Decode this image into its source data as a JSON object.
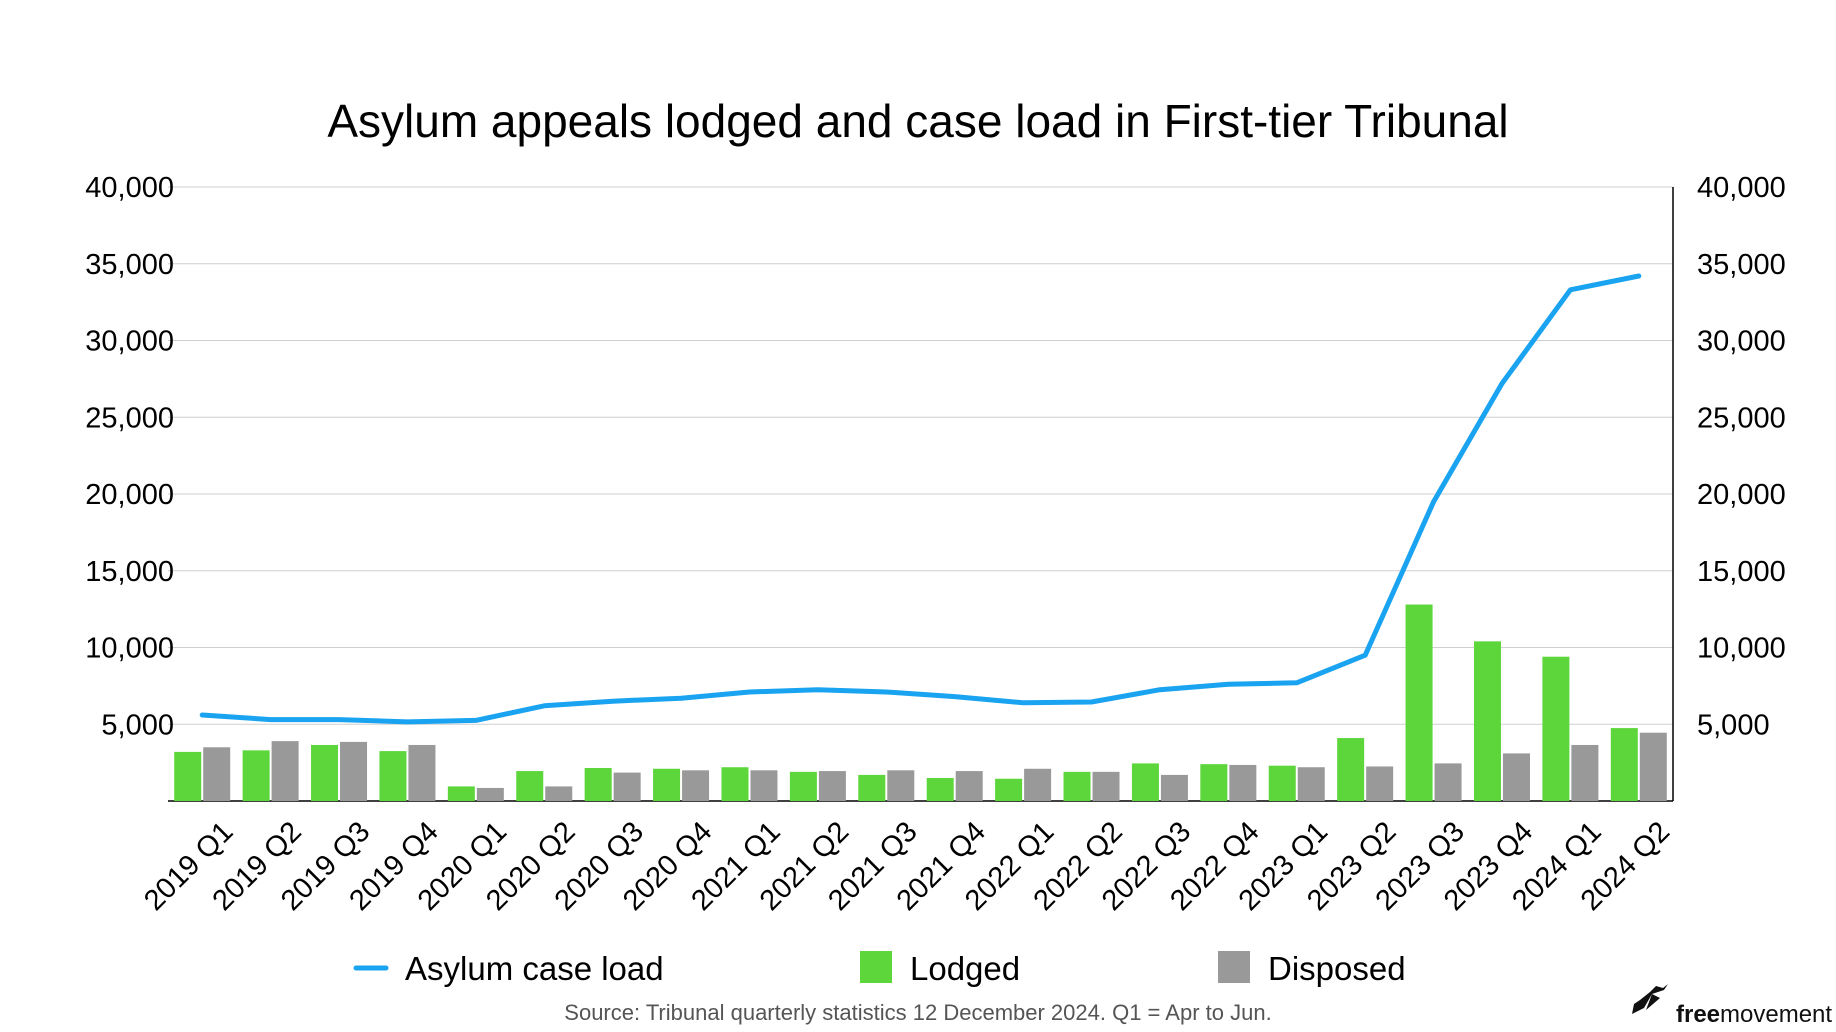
{
  "chart_data": {
    "type": "bar",
    "title": "Asylum appeals lodged and case load in First-tier Tribunal",
    "categories": [
      "2019 Q1",
      "2019 Q2",
      "2019 Q3",
      "2019 Q4",
      "2020 Q1",
      "2020 Q2",
      "2020 Q3",
      "2020 Q4",
      "2021 Q1",
      "2021 Q2",
      "2021 Q3",
      "2021 Q4",
      "2022 Q1",
      "2022 Q2",
      "2022 Q3",
      "2022 Q4",
      "2023 Q1",
      "2023 Q2",
      "2023 Q3",
      "2023 Q4",
      "2024 Q1",
      "2024 Q2"
    ],
    "series": [
      {
        "name": "Asylum case load",
        "kind": "line",
        "color": "#1aa3f0",
        "values": [
          5600,
          5300,
          5300,
          5150,
          5250,
          6200,
          6500,
          6700,
          7100,
          7250,
          7100,
          6800,
          6400,
          6450,
          7250,
          7600,
          7700,
          9500,
          19500,
          27200,
          33300,
          34200
        ]
      },
      {
        "name": "Lodged",
        "kind": "bar",
        "color": "#5cd63a",
        "values": [
          3200,
          3300,
          3650,
          3250,
          950,
          1950,
          2150,
          2100,
          2200,
          1900,
          1700,
          1500,
          1450,
          1900,
          2450,
          2400,
          2300,
          4100,
          12800,
          10400,
          9400,
          4750
        ]
      },
      {
        "name": "Disposed",
        "kind": "bar",
        "color": "#999999",
        "values": [
          3500,
          3900,
          3850,
          3650,
          850,
          950,
          1850,
          2000,
          2000,
          1950,
          2000,
          1950,
          2100,
          1900,
          1700,
          2350,
          2200,
          2250,
          2450,
          3100,
          3650,
          4450
        ]
      }
    ],
    "ylim": [
      0,
      40000
    ],
    "yticks": [
      "40,000",
      "35,000",
      "30,000",
      "25,000",
      "20,000",
      "15,000",
      "10,000",
      "5,000"
    ],
    "ytick_values": [
      40000,
      35000,
      30000,
      25000,
      20000,
      15000,
      10000,
      5000
    ],
    "grid": true,
    "legend": [
      "Asylum case load",
      "Lodged",
      "Disposed"
    ],
    "legend_position": "bottom"
  },
  "footer": {
    "source": "Source: Tribunal quarterly statistics 12 December 2024. Q1 = Apr to Jun.",
    "brand_bold": "free",
    "brand_rest": "movement"
  }
}
